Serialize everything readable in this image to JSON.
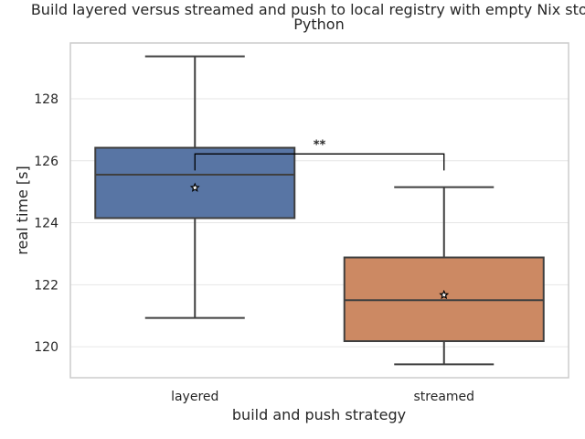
{
  "chart_data": {
    "type": "box",
    "title": "Build layered versus streamed and push to local registry with empty Nix store:",
    "subtitle": "Python",
    "xlabel": "build and push strategy",
    "ylabel": "real time [s]",
    "ylim": [
      119.0,
      129.8
    ],
    "yticks": [
      120,
      122,
      124,
      126,
      128
    ],
    "categories": [
      "layered",
      "streamed"
    ],
    "boxes": [
      {
        "category": "layered",
        "whisker_low": 120.93,
        "q1": 124.15,
        "median": 125.55,
        "q3": 126.42,
        "whisker_high": 129.37,
        "mean": 125.13,
        "color": "#5875a4"
      },
      {
        "category": "streamed",
        "whisker_low": 119.43,
        "q1": 120.18,
        "median": 121.5,
        "q3": 122.88,
        "whisker_high": 125.15,
        "mean": 121.67,
        "color": "#cc8963"
      }
    ],
    "significance": {
      "between": [
        "layered",
        "streamed"
      ],
      "label": "**",
      "y": 126.22
    },
    "grid": true,
    "mean_marker": "star"
  }
}
